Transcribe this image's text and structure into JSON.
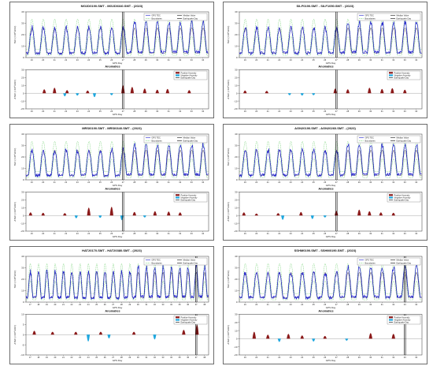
{
  "labels": {
    "anomalies_title": "Anomalies",
    "legend_gps_tec": "GPS TEC",
    "legend_median": "Median Value",
    "legend_boundaries": "Boundaries",
    "legend_eq_day": "Earthquake Day",
    "legend_pos": "Positive Anomaly",
    "legend_neg": "Negative Anomaly",
    "x_label": "GPS Day",
    "y_label_top": "TEC (×10¹⁶el/m²)",
    "y_label_bottom": "ΔTEC (×10¹⁶el/m²)"
  },
  "colors": {
    "tec": "#1f1fcc",
    "median": "#111111",
    "boundary": "#28b828",
    "positive": "#8b1a1a",
    "negative": "#1ea8e0",
    "eq_line": "#000000"
  },
  "chart_data": [
    {
      "type": "line",
      "title": "MG2D0190.SMT - MG2D0340.SMT - (2023)",
      "day_range": [
        19,
        34
      ],
      "earthquake_day": 27,
      "tec_ylim": [
        0,
        40
      ],
      "anomaly_ylim": [
        -20,
        30
      ],
      "positive_anomalies": [
        {
          "day": 20.6,
          "value": 8
        },
        {
          "day": 21.5,
          "value": 12
        },
        {
          "day": 22.6,
          "value": 6
        },
        {
          "day": 24.4,
          "value": 5
        },
        {
          "day": 27.5,
          "value": 18
        },
        {
          "day": 28.3,
          "value": 14
        },
        {
          "day": 29.4,
          "value": 10
        },
        {
          "day": 30.5,
          "value": 7
        },
        {
          "day": 31.4,
          "value": 9
        },
        {
          "day": 33.3,
          "value": 6
        }
      ],
      "negative_anomalies": [
        {
          "day": 22.4,
          "value": -6
        },
        {
          "day": 23.5,
          "value": -4
        },
        {
          "day": 25.0,
          "value": -8
        },
        {
          "day": 26.5,
          "value": -3
        }
      ]
    },
    {
      "type": "line",
      "title": "SILF0190.SMT - SILF1050.SMT - (2023)",
      "day_range": [
        19,
        34
      ],
      "earthquake_day": 27,
      "tec_ylim": [
        0,
        40
      ],
      "anomaly_ylim": [
        -20,
        30
      ],
      "positive_anomalies": [
        {
          "day": 19.5,
          "value": 5
        },
        {
          "day": 21.4,
          "value": 4
        },
        {
          "day": 27.4,
          "value": 10
        },
        {
          "day": 28.5,
          "value": 8
        },
        {
          "day": 30.4,
          "value": 12
        },
        {
          "day": 31.5,
          "value": 9
        },
        {
          "day": 32.4,
          "value": 11
        },
        {
          "day": 33.5,
          "value": 7
        }
      ],
      "negative_anomalies": [
        {
          "day": 23.4,
          "value": -3
        },
        {
          "day": 24.5,
          "value": -4
        },
        {
          "day": 25.5,
          "value": -3
        }
      ]
    },
    {
      "type": "line",
      "title": "MRSI0190.SMT - MRSI0340.SMT - (2023)",
      "day_range": [
        19,
        34
      ],
      "earthquake_day": 27,
      "tec_ylim": [
        0,
        40
      ],
      "anomaly_ylim": [
        -20,
        30
      ],
      "positive_anomalies": [
        {
          "day": 19.4,
          "value": 6
        },
        {
          "day": 20.5,
          "value": 5
        },
        {
          "day": 22.4,
          "value": 4
        },
        {
          "day": 24.5,
          "value": 18
        },
        {
          "day": 26.5,
          "value": 20
        },
        {
          "day": 28.5,
          "value": 7
        },
        {
          "day": 30.3,
          "value": 9
        },
        {
          "day": 31.5,
          "value": 8
        },
        {
          "day": 32.5,
          "value": 6
        }
      ],
      "negative_anomalies": [
        {
          "day": 23.4,
          "value": -5
        },
        {
          "day": 25.5,
          "value": -4
        },
        {
          "day": 27.4,
          "value": -10
        },
        {
          "day": 29.4,
          "value": -3
        }
      ]
    },
    {
      "type": "line",
      "title": "AGN20190.SMT - AGN20260.SMT - (2023)",
      "day_range": [
        19,
        34
      ],
      "earthquake_day": 27,
      "tec_ylim": [
        0,
        40
      ],
      "anomaly_ylim": [
        -20,
        30
      ],
      "positive_anomalies": [
        {
          "day": 19.4,
          "value": 6
        },
        {
          "day": 20.5,
          "value": 3
        },
        {
          "day": 22.4,
          "value": 4
        },
        {
          "day": 24.4,
          "value": 7
        },
        {
          "day": 27.5,
          "value": 10
        },
        {
          "day": 29.5,
          "value": 13
        },
        {
          "day": 30.4,
          "value": 9
        },
        {
          "day": 31.4,
          "value": 6
        },
        {
          "day": 32.5,
          "value": 5
        }
      ],
      "negative_anomalies": [
        {
          "day": 22.8,
          "value": -9
        },
        {
          "day": 25.4,
          "value": -7
        },
        {
          "day": 26.5,
          "value": -3
        }
      ]
    },
    {
      "type": "line",
      "title": "HAT20170.SMT - HAT20380.SMT - (2023)",
      "day_range": [
        17,
        38
      ],
      "earthquake_day": 37,
      "tec_ylim": [
        0,
        40
      ],
      "anomaly_ylim": [
        -10,
        10
      ],
      "positive_anomalies": [
        {
          "day": 18.0,
          "value": 3
        },
        {
          "day": 20.2,
          "value": 2
        },
        {
          "day": 23.0,
          "value": 2
        },
        {
          "day": 26.0,
          "value": 2
        },
        {
          "day": 30.0,
          "value": 2
        },
        {
          "day": 36.0,
          "value": 4
        },
        {
          "day": 37.6,
          "value": 9
        }
      ],
      "negative_anomalies": [
        {
          "day": 24.5,
          "value": -6
        },
        {
          "day": 27.0,
          "value": -3
        },
        {
          "day": 32.5,
          "value": -4
        }
      ]
    },
    {
      "type": "line",
      "title": "SSHM0190.SMT - SSHM0190.SMT - (2023)",
      "day_range": [
        19,
        34
      ],
      "earthquake_day": 33,
      "tec_ylim": [
        0,
        40
      ],
      "anomaly_ylim": [
        -20,
        30
      ],
      "positive_anomalies": [
        {
          "day": 20.3,
          "value": 15
        },
        {
          "day": 21.5,
          "value": 8
        },
        {
          "day": 23.3,
          "value": 10
        },
        {
          "day": 24.5,
          "value": 6
        },
        {
          "day": 26.5,
          "value": 5
        },
        {
          "day": 30.5,
          "value": 12
        },
        {
          "day": 32.5,
          "value": 10
        }
      ],
      "negative_anomalies": [
        {
          "day": 22.5,
          "value": -6
        },
        {
          "day": 25.5,
          "value": -5
        },
        {
          "day": 28.4,
          "value": -3
        }
      ]
    }
  ]
}
